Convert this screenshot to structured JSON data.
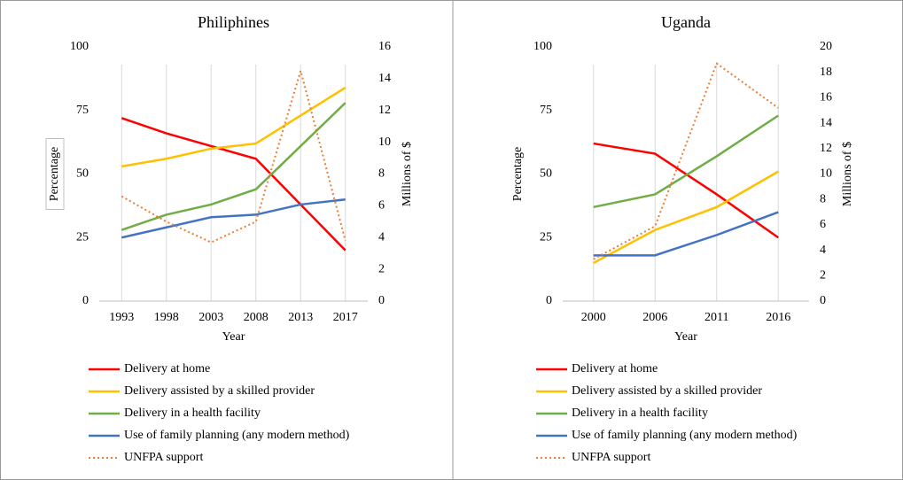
{
  "chart_data": [
    {
      "type": "line",
      "title": "Philiphines",
      "xlabel": "Year",
      "ylabel": "Percentage",
      "y2label": "Millions of $",
      "categories": [
        "1993",
        "1998",
        "2003",
        "2008",
        "2013",
        "2017"
      ],
      "ylim": [
        0,
        100
      ],
      "yticks": [
        0,
        25,
        50,
        75,
        100
      ],
      "y2lim": [
        0,
        16
      ],
      "y2ticks": [
        0,
        2,
        4,
        6,
        8,
        10,
        12,
        14,
        16
      ],
      "series": [
        {
          "name": "Delivery at home",
          "color": "#ff0000",
          "values": [
            72,
            66,
            61,
            56,
            38,
            20
          ]
        },
        {
          "name": "Delivery assisted by a skilled provider",
          "color": "#ffc000",
          "values": [
            53,
            56,
            60,
            62,
            73,
            84
          ]
        },
        {
          "name": "Delivery in a health facility",
          "color": "#70ad47",
          "values": [
            28,
            34,
            38,
            44,
            61,
            78
          ]
        },
        {
          "name": "Use of family planning (any modern method)",
          "color": "#4472c4",
          "values": [
            25,
            29,
            33,
            34,
            38,
            40
          ]
        },
        {
          "name": "UNFPA support",
          "color": "#ed7d31",
          "style": "dotted",
          "axis": "y2",
          "values": [
            6.6,
            5.0,
            3.7,
            5.0,
            14.5,
            3.8
          ]
        }
      ]
    },
    {
      "type": "line",
      "title": "Uganda",
      "xlabel": "Year",
      "ylabel": "Percentage",
      "y2label": "Millions of $",
      "categories": [
        "2000",
        "2006",
        "2011",
        "2016"
      ],
      "ylim": [
        0,
        100
      ],
      "yticks": [
        0,
        25,
        50,
        75,
        100
      ],
      "y2lim": [
        0,
        20
      ],
      "y2ticks": [
        0,
        2,
        4,
        6,
        8,
        10,
        12,
        14,
        16,
        18,
        20
      ],
      "series": [
        {
          "name": "Delivery at home",
          "color": "#ff0000",
          "values": [
            62,
            58,
            42,
            25
          ]
        },
        {
          "name": "Delivery assisted by a skilled provider",
          "color": "#ffc000",
          "values": [
            15,
            28,
            37,
            51
          ]
        },
        {
          "name": "Delivery in a health facility",
          "color": "#70ad47",
          "values": [
            37,
            42,
            57,
            73
          ]
        },
        {
          "name": "Use of family planning (any modern method)",
          "color": "#4472c4",
          "values": [
            18,
            18,
            26,
            35
          ]
        },
        {
          "name": "UNFPA support",
          "color": "#ed7d31",
          "style": "dotted",
          "axis": "y2",
          "values": [
            3.3,
            5.9,
            18.7,
            15.2
          ]
        }
      ]
    }
  ]
}
